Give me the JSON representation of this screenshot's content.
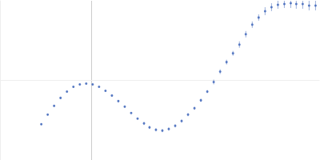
{
  "chart_data": {
    "type": "scatter",
    "color": "#3a62b8",
    "marker": "circle",
    "grid": true,
    "tick_labels": false,
    "xlim": [
      0,
      3.48
    ],
    "xticks": [
      1
    ],
    "ylim": [
      -1,
      1
    ],
    "yticks": [
      0
    ],
    "x": [
      0.45,
      0.52,
      0.59,
      0.66,
      0.73,
      0.8,
      0.87,
      0.94,
      1.01,
      1.08,
      1.15,
      1.22,
      1.29,
      1.36,
      1.43,
      1.5,
      1.57,
      1.63,
      1.7,
      1.77,
      1.84,
      1.91,
      1.98,
      2.05,
      2.12,
      2.19,
      2.26,
      2.33,
      2.4,
      2.47,
      2.54,
      2.61,
      2.68,
      2.75,
      2.82,
      2.89,
      2.96,
      3.03,
      3.1,
      3.17,
      3.23,
      3.3,
      3.37,
      3.44
    ],
    "values": [
      -0.55,
      -0.43,
      -0.32,
      -0.22,
      -0.14,
      -0.08,
      -0.05,
      -0.04,
      -0.05,
      -0.08,
      -0.13,
      -0.19,
      -0.26,
      -0.33,
      -0.41,
      -0.48,
      -0.54,
      -0.59,
      -0.62,
      -0.63,
      -0.61,
      -0.57,
      -0.51,
      -0.43,
      -0.35,
      -0.25,
      -0.14,
      -0.02,
      0.11,
      0.23,
      0.34,
      0.45,
      0.58,
      0.7,
      0.79,
      0.87,
      0.92,
      0.95,
      0.96,
      0.97,
      0.96,
      0.96,
      0.94,
      0.94
    ],
    "errors": [
      0.01,
      0.01,
      0.01,
      0.01,
      0.01,
      0.01,
      0.01,
      0.01,
      0.01,
      0.01,
      0.01,
      0.01,
      0.01,
      0.01,
      0.01,
      0.01,
      0.02,
      0.02,
      0.02,
      0.02,
      0.02,
      0.02,
      0.02,
      0.02,
      0.02,
      0.02,
      0.02,
      0.03,
      0.03,
      0.03,
      0.03,
      0.04,
      0.04,
      0.04,
      0.04,
      0.05,
      0.05,
      0.05,
      0.05,
      0.06,
      0.06,
      0.06,
      0.06,
      0.06
    ]
  }
}
